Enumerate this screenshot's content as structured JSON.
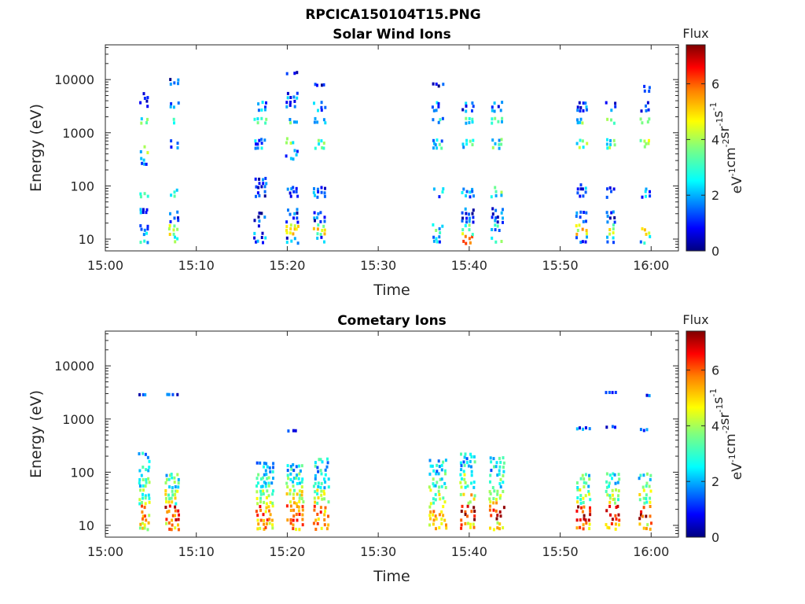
{
  "figure": {
    "title": "RPCICA150104T15.PNG"
  },
  "colorbar": {
    "label_lines": [
      "eV",
      "-1",
      "cm",
      "-2",
      "sr",
      "-1",
      "s",
      "-1"
    ],
    "colormap": "jet",
    "colors": [
      "#00007f",
      "#0000ff",
      "#007fff",
      "#00ffff",
      "#7fff7f",
      "#ffff00",
      "#ff7f00",
      "#ff0000",
      "#7f0000"
    ]
  },
  "chart_data": [
    {
      "type": "heatmap",
      "title": "Solar Wind Ions",
      "xlabel": "Time",
      "ylabel": "Energy (eV)",
      "yscale": "log",
      "xlim": [
        "15:00",
        "16:03"
      ],
      "ylim": [
        6,
        45000
      ],
      "xticks": [
        "15:00",
        "15:10",
        "15:20",
        "15:30",
        "15:40",
        "15:50",
        "16:00"
      ],
      "yticks": [
        10,
        100,
        1000,
        10000
      ],
      "ytick_labels": [
        "10",
        "100",
        "1000",
        "10000"
      ],
      "colorbar_title": "Flux",
      "clim": [
        0,
        7.4
      ],
      "colorbar_ticks": [
        0,
        2,
        4,
        6
      ],
      "bursts": [
        {
          "time_min": 4.2,
          "width_min": 1.0,
          "clusters": [
            [
              8,
              10,
              2.2
            ],
            [
              12,
              20,
              2.0
            ],
            [
              30,
              40,
              1.5
            ],
            [
              60,
              80,
              3.0
            ],
            [
              250,
              350,
              2.0
            ],
            [
              400,
              600,
              3.2
            ],
            [
              1500,
              2000,
              3.5
            ],
            [
              3000,
              6000,
              1.2
            ]
          ]
        },
        {
          "time_min": 7.5,
          "width_min": 1.2,
          "clusters": [
            [
              8,
              12,
              3.5
            ],
            [
              12,
              20,
              4.0
            ],
            [
              20,
              35,
              1.0
            ],
            [
              60,
              90,
              3.0
            ],
            [
              500,
              800,
              2.0
            ],
            [
              1500,
              2000,
              3.0
            ],
            [
              2500,
              4000,
              1.8
            ],
            [
              8000,
              11000,
              1.0
            ]
          ]
        },
        {
          "time_min": 17.0,
          "width_min": 1.5,
          "clusters": [
            [
              8,
              12,
              1.5
            ],
            [
              12,
              20,
              1.6
            ],
            [
              20,
              35,
              1.0
            ],
            [
              60,
              150,
              1.2
            ],
            [
              500,
              800,
              2.0
            ],
            [
              1500,
              2000,
              3.0
            ],
            [
              2500,
              4000,
              1.8
            ]
          ]
        },
        {
          "time_min": 20.5,
          "width_min": 1.5,
          "clusters": [
            [
              8,
              12,
              1.5
            ],
            [
              12,
              20,
              4.5
            ],
            [
              20,
              40,
              1.2
            ],
            [
              60,
              100,
              1.5
            ],
            [
              300,
              500,
              2.0
            ],
            [
              600,
              900,
              3.4
            ],
            [
              1500,
              2000,
              3.0
            ],
            [
              3000,
              6000,
              1.5
            ],
            [
              12000,
              15000,
              1.0
            ]
          ]
        },
        {
          "time_min": 23.5,
          "width_min": 1.4,
          "clusters": [
            [
              8,
              12,
              2.0
            ],
            [
              12,
              20,
              4.2
            ],
            [
              20,
              35,
              1.2
            ],
            [
              60,
              100,
              1.5
            ],
            [
              500,
              800,
              3.2
            ],
            [
              1500,
              2000,
              3.0
            ],
            [
              2500,
              4000,
              1.8
            ],
            [
              7000,
              9000,
              1.0
            ]
          ]
        },
        {
          "time_min": 36.5,
          "width_min": 1.3,
          "clusters": [
            [
              8,
              12,
              2.0
            ],
            [
              12,
              20,
              2.8
            ],
            [
              60,
              100,
              2.0
            ],
            [
              500,
              800,
              2.5
            ],
            [
              1500,
              2000,
              2.5
            ],
            [
              2500,
              4000,
              1.8
            ],
            [
              7000,
              9000,
              1.0
            ]
          ]
        },
        {
          "time_min": 39.8,
          "width_min": 1.4,
          "clusters": [
            [
              8,
              12,
              5.0
            ],
            [
              12,
              20,
              3.5
            ],
            [
              20,
              40,
              1.2
            ],
            [
              60,
              100,
              2.0
            ],
            [
              500,
              800,
              3.0
            ],
            [
              1500,
              2000,
              3.2
            ],
            [
              2500,
              4000,
              1.5
            ]
          ]
        },
        {
          "time_min": 43.0,
          "width_min": 1.4,
          "clusters": [
            [
              8,
              12,
              3.5
            ],
            [
              12,
              20,
              2.5
            ],
            [
              20,
              40,
              1.2
            ],
            [
              60,
              100,
              3.0
            ],
            [
              500,
              800,
              3.0
            ],
            [
              1500,
              2000,
              3.0
            ],
            [
              2500,
              4000,
              1.5
            ]
          ]
        },
        {
          "time_min": 52.3,
          "width_min": 1.3,
          "clusters": [
            [
              8,
              12,
              1.8
            ],
            [
              12,
              20,
              4.5
            ],
            [
              20,
              35,
              1.2
            ],
            [
              60,
              120,
              1.5
            ],
            [
              500,
              800,
              3.2
            ],
            [
              1500,
              2000,
              3.0
            ],
            [
              2500,
              4000,
              1.5
            ]
          ]
        },
        {
          "time_min": 55.5,
          "width_min": 1.2,
          "clusters": [
            [
              8,
              12,
              2.0
            ],
            [
              12,
              20,
              4.2
            ],
            [
              20,
              35,
              1.2
            ],
            [
              60,
              100,
              1.5
            ],
            [
              500,
              800,
              3.2
            ],
            [
              1500,
              2000,
              3.0
            ],
            [
              2500,
              4000,
              1.5
            ]
          ]
        },
        {
          "time_min": 59.3,
          "width_min": 1.2,
          "clusters": [
            [
              8,
              12,
              2.2
            ],
            [
              12,
              20,
              4.0
            ],
            [
              60,
              100,
              2.0
            ],
            [
              500,
              800,
              4.0
            ],
            [
              1500,
              2000,
              3.0
            ],
            [
              2500,
              4000,
              1.5
            ],
            [
              6000,
              8000,
              1.0
            ]
          ]
        }
      ]
    },
    {
      "type": "heatmap",
      "title": "Cometary Ions",
      "xlabel": "Time",
      "ylabel": "Energy (eV)",
      "yscale": "log",
      "xlim": [
        "15:00",
        "16:03"
      ],
      "ylim": [
        6,
        45000
      ],
      "xticks": [
        "15:00",
        "15:10",
        "15:20",
        "15:30",
        "15:40",
        "15:50",
        "16:00"
      ],
      "yticks": [
        10,
        100,
        1000,
        10000
      ],
      "ytick_labels": [
        "10",
        "100",
        "1000",
        "10000"
      ],
      "colorbar_title": "Flux",
      "clim": [
        0,
        7.4
      ],
      "colorbar_ticks": [
        0,
        2,
        4,
        6
      ],
      "bursts": [
        {
          "time_min": 4.2,
          "width_min": 1.3,
          "clusters": [
            [
              8,
              12,
              4.5
            ],
            [
              12,
              25,
              5.0
            ],
            [
              25,
              50,
              3.5
            ],
            [
              50,
              100,
              3.0
            ],
            [
              100,
              250,
              2.5
            ],
            [
              3000,
              3100,
              1.2
            ]
          ]
        },
        {
          "time_min": 7.3,
          "width_min": 1.6,
          "clusters": [
            [
              8,
              12,
              5.0
            ],
            [
              12,
              25,
              6.2
            ],
            [
              25,
              50,
              4.0
            ],
            [
              50,
              100,
              3.0
            ],
            [
              3000,
              3100,
              1.2
            ]
          ]
        },
        {
          "time_min": 17.5,
          "width_min": 2.0,
          "clusters": [
            [
              8,
              12,
              5.0
            ],
            [
              12,
              25,
              5.5
            ],
            [
              25,
              50,
              4.0
            ],
            [
              50,
              100,
              3.0
            ],
            [
              100,
              160,
              2.5
            ]
          ]
        },
        {
          "time_min": 20.8,
          "width_min": 2.0,
          "clusters": [
            [
              8,
              12,
              5.2
            ],
            [
              12,
              25,
              6.0
            ],
            [
              25,
              50,
              4.2
            ],
            [
              50,
              100,
              3.2
            ],
            [
              100,
              150,
              2.5
            ],
            [
              600,
              650,
              1.5
            ]
          ]
        },
        {
          "time_min": 23.7,
          "width_min": 1.8,
          "clusters": [
            [
              8,
              12,
              5.0
            ],
            [
              12,
              25,
              5.5
            ],
            [
              25,
              50,
              4.0
            ],
            [
              50,
              100,
              3.0
            ],
            [
              100,
              200,
              2.5
            ]
          ]
        },
        {
          "time_min": 36.5,
          "width_min": 2.0,
          "clusters": [
            [
              8,
              12,
              4.5
            ],
            [
              12,
              25,
              5.0
            ],
            [
              25,
              50,
              4.0
            ],
            [
              50,
              100,
              3.0
            ],
            [
              100,
              180,
              2.5
            ]
          ]
        },
        {
          "time_min": 39.8,
          "width_min": 1.8,
          "clusters": [
            [
              8,
              12,
              5.2
            ],
            [
              12,
              25,
              6.8
            ],
            [
              25,
              50,
              4.5
            ],
            [
              50,
              100,
              3.5
            ],
            [
              100,
              250,
              2.5
            ]
          ]
        },
        {
          "time_min": 43.0,
          "width_min": 1.8,
          "clusters": [
            [
              8,
              12,
              5.0
            ],
            [
              12,
              25,
              6.5
            ],
            [
              25,
              50,
              4.5
            ],
            [
              50,
              100,
              3.0
            ],
            [
              100,
              200,
              2.5
            ]
          ]
        },
        {
          "time_min": 52.5,
          "width_min": 1.6,
          "clusters": [
            [
              8,
              12,
              5.0
            ],
            [
              12,
              25,
              6.5
            ],
            [
              25,
              50,
              4.0
            ],
            [
              50,
              100,
              3.0
            ],
            [
              600,
              750,
              1.5
            ]
          ]
        },
        {
          "time_min": 55.7,
          "width_min": 1.6,
          "clusters": [
            [
              8,
              12,
              5.2
            ],
            [
              12,
              25,
              6.8
            ],
            [
              25,
              50,
              4.0
            ],
            [
              50,
              100,
              3.0
            ],
            [
              700,
              800,
              1.5
            ],
            [
              3200,
              3400,
              1.2
            ]
          ]
        },
        {
          "time_min": 59.3,
          "width_min": 1.5,
          "clusters": [
            [
              8,
              12,
              5.0
            ],
            [
              12,
              25,
              6.5
            ],
            [
              25,
              50,
              4.0
            ],
            [
              50,
              100,
              3.0
            ],
            [
              600,
              700,
              1.5
            ],
            [
              2800,
              3000,
              1.2
            ]
          ]
        }
      ]
    }
  ]
}
